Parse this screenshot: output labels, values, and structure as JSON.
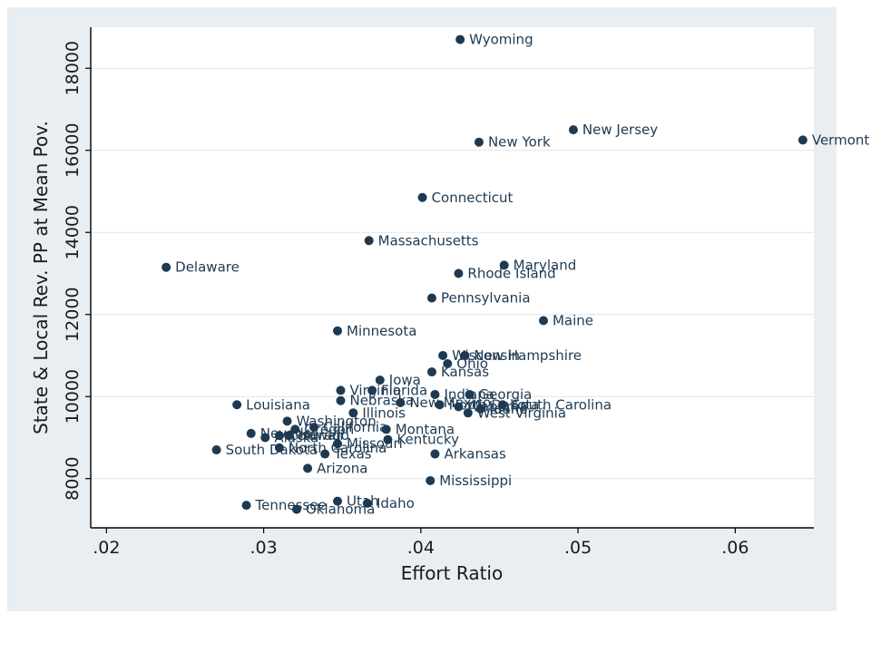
{
  "chart_data": {
    "type": "scatter",
    "xlabel": "Effort Ratio",
    "ylabel": "State & Local Rev. PP at Mean Pov.",
    "xlim": [
      0.019,
      0.065
    ],
    "ylim": [
      6800,
      19000
    ],
    "xticks": [
      {
        "value": 0.02,
        "label": ".02"
      },
      {
        "value": 0.03,
        "label": ".03"
      },
      {
        "value": 0.04,
        "label": ".04"
      },
      {
        "value": 0.05,
        "label": ".05"
      },
      {
        "value": 0.06,
        "label": ".06"
      }
    ],
    "yticks": [
      {
        "value": 8000,
        "label": "8000"
      },
      {
        "value": 10000,
        "label": "10000"
      },
      {
        "value": 12000,
        "label": "12000"
      },
      {
        "value": 14000,
        "label": "14000"
      },
      {
        "value": 16000,
        "label": "16000"
      },
      {
        "value": 18000,
        "label": "18000"
      }
    ],
    "grid": "horizontal",
    "marker_color": "#1e3a52",
    "background_color": "#e8eef1",
    "points": [
      {
        "label": "Wyoming",
        "x": 0.0425,
        "y": 18700
      },
      {
        "label": "New Jersey",
        "x": 0.0497,
        "y": 16500
      },
      {
        "label": "Vermont",
        "x": 0.0643,
        "y": 16250
      },
      {
        "label": "New York",
        "x": 0.0437,
        "y": 16200
      },
      {
        "label": "Connecticut",
        "x": 0.0401,
        "y": 14850
      },
      {
        "label": "Massachusetts",
        "x": 0.0367,
        "y": 13800
      },
      {
        "label": "Delaware",
        "x": 0.0238,
        "y": 13150
      },
      {
        "label": "Maryland",
        "x": 0.0453,
        "y": 13200
      },
      {
        "label": "Rhode Island",
        "x": 0.0424,
        "y": 13000
      },
      {
        "label": "Pennsylvania",
        "x": 0.0407,
        "y": 12400
      },
      {
        "label": "Maine",
        "x": 0.0478,
        "y": 11850
      },
      {
        "label": "Minnesota",
        "x": 0.0347,
        "y": 11600
      },
      {
        "label": "Wisconsin",
        "x": 0.0414,
        "y": 11000
      },
      {
        "label": "New Hampshire",
        "x": 0.0428,
        "y": 11000
      },
      {
        "label": "Ohio",
        "x": 0.0417,
        "y": 10800
      },
      {
        "label": "Kansas",
        "x": 0.0407,
        "y": 10600
      },
      {
        "label": "Iowa",
        "x": 0.0374,
        "y": 10400
      },
      {
        "label": "Virginia",
        "x": 0.0349,
        "y": 10150
      },
      {
        "label": "Florida",
        "x": 0.0369,
        "y": 10150
      },
      {
        "label": "Indiana",
        "x": 0.0409,
        "y": 10050
      },
      {
        "label": "Georgia",
        "x": 0.0431,
        "y": 10050
      },
      {
        "label": "Nebraska",
        "x": 0.0349,
        "y": 9900
      },
      {
        "label": "New Mexico",
        "x": 0.0387,
        "y": 9850
      },
      {
        "label": "Louisiana",
        "x": 0.0283,
        "y": 9800
      },
      {
        "label": "North Dakota",
        "x": 0.0412,
        "y": 9800
      },
      {
        "label": "Alabama",
        "x": 0.0424,
        "y": 9750
      },
      {
        "label": "South Carolina",
        "x": 0.0452,
        "y": 9800
      },
      {
        "label": "Idaho",
        "x": 0.0438,
        "y": 9700
      },
      {
        "label": "West Virginia",
        "x": 0.043,
        "y": 9600
      },
      {
        "label": "Illinois",
        "x": 0.0357,
        "y": 9600
      },
      {
        "label": "Washington",
        "x": 0.0315,
        "y": 9400
      },
      {
        "label": "California",
        "x": 0.0332,
        "y": 9250
      },
      {
        "label": "Oregon",
        "x": 0.032,
        "y": 9200
      },
      {
        "label": "Montana",
        "x": 0.0378,
        "y": 9200
      },
      {
        "label": "Nevada",
        "x": 0.0292,
        "y": 9100
      },
      {
        "label": "Colorado",
        "x": 0.031,
        "y": 9050
      },
      {
        "label": "Hawaii",
        "x": 0.0316,
        "y": 9050
      },
      {
        "label": "Alaska",
        "x": 0.0301,
        "y": 9000
      },
      {
        "label": "Kentucky",
        "x": 0.0379,
        "y": 8950
      },
      {
        "label": "Missouri",
        "x": 0.0347,
        "y": 8850
      },
      {
        "label": "South Dakota",
        "x": 0.027,
        "y": 8700
      },
      {
        "label": "North Carolina",
        "x": 0.031,
        "y": 8750
      },
      {
        "label": "Texas",
        "x": 0.0339,
        "y": 8600
      },
      {
        "label": "Arkansas",
        "x": 0.0409,
        "y": 8600
      },
      {
        "label": "Arizona",
        "x": 0.0328,
        "y": 8250
      },
      {
        "label": "Mississippi",
        "x": 0.0406,
        "y": 7950
      },
      {
        "label": "Utah",
        "x": 0.0347,
        "y": 7450
      },
      {
        "label": "Idaho",
        "x": 0.0366,
        "y": 7400
      },
      {
        "label": "Tennessee",
        "x": 0.0289,
        "y": 7350
      },
      {
        "label": "Oklahoma",
        "x": 0.0321,
        "y": 7250
      }
    ]
  }
}
